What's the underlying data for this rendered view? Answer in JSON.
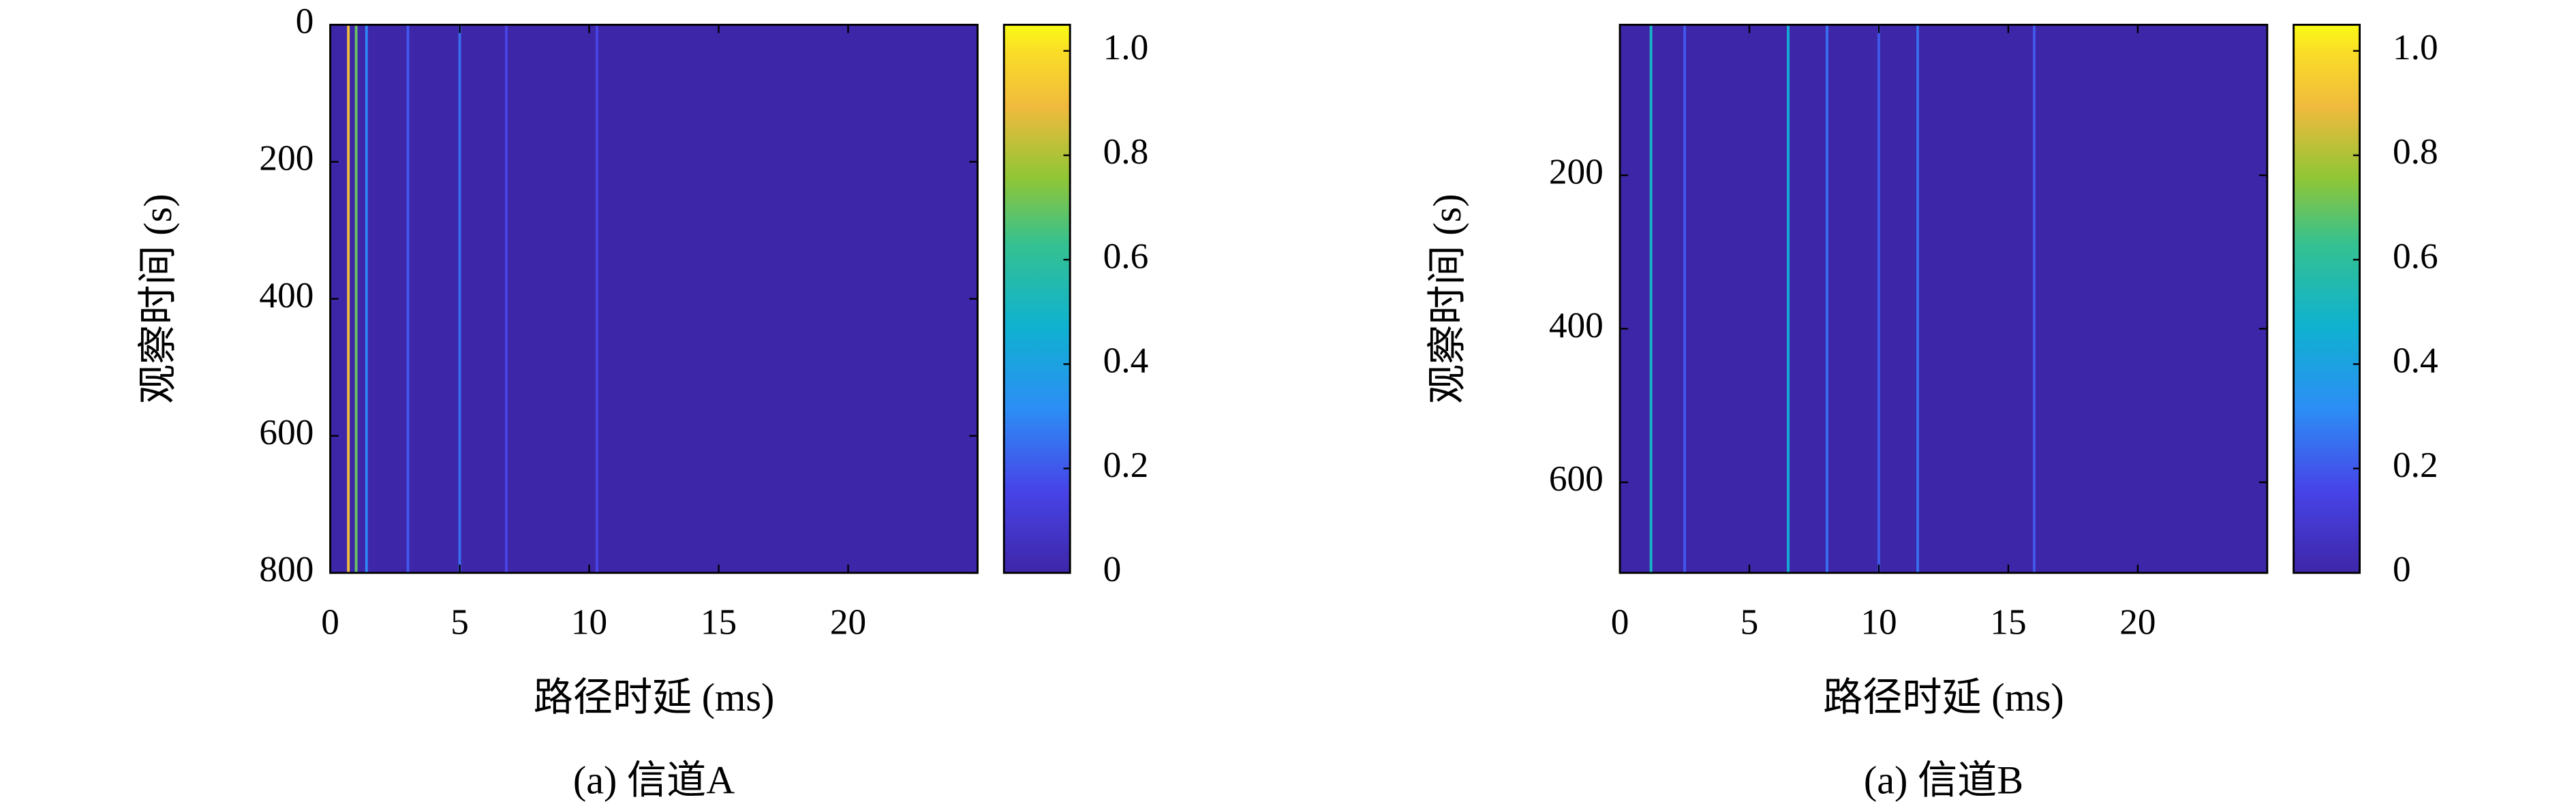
{
  "chart_data": [
    {
      "type": "heatmap",
      "title": "(a) 信道A",
      "xlabel": "路径时延 (ms)",
      "ylabel": "观察时间 (s)",
      "xlim": [
        0,
        25
      ],
      "xticks": [
        0,
        5,
        10,
        15,
        20
      ],
      "ylim": [
        0,
        800
      ],
      "yticks": [
        0,
        200,
        400,
        600,
        800
      ],
      "clim": [
        0,
        1.05
      ],
      "cticks": [
        0,
        0.2,
        0.4,
        0.6,
        0.8,
        {
          "value": 1,
          "label": "1.0"
        }
      ],
      "streaks": {
        "x": [
          0.7,
          1.0,
          1.4,
          3.0,
          5.0,
          6.8,
          10.3
        ],
        "values": [
          0.9,
          0.7,
          0.3,
          0.2,
          0.25,
          0.15,
          0.15
        ]
      }
    },
    {
      "type": "heatmap",
      "title": "(a) 信道B",
      "xlabel": "路径时延 (ms)",
      "ylabel": "观察时间 (s)",
      "xlim": [
        0,
        25
      ],
      "xticks": [
        0,
        5,
        10,
        15,
        20
      ],
      "ylim": [
        4,
        718
      ],
      "yticks": [
        200,
        400,
        600
      ],
      "clim": [
        0,
        1.05
      ],
      "cticks": [
        0,
        0.2,
        0.4,
        0.6,
        0.8,
        {
          "value": 1,
          "label": "1.0"
        }
      ],
      "streaks": {
        "x": [
          1.2,
          2.5,
          6.5,
          8.0,
          10.0,
          11.5,
          16.0
        ],
        "values": [
          0.5,
          0.2,
          0.45,
          0.25,
          0.2,
          0.25,
          0.2
        ]
      }
    }
  ]
}
